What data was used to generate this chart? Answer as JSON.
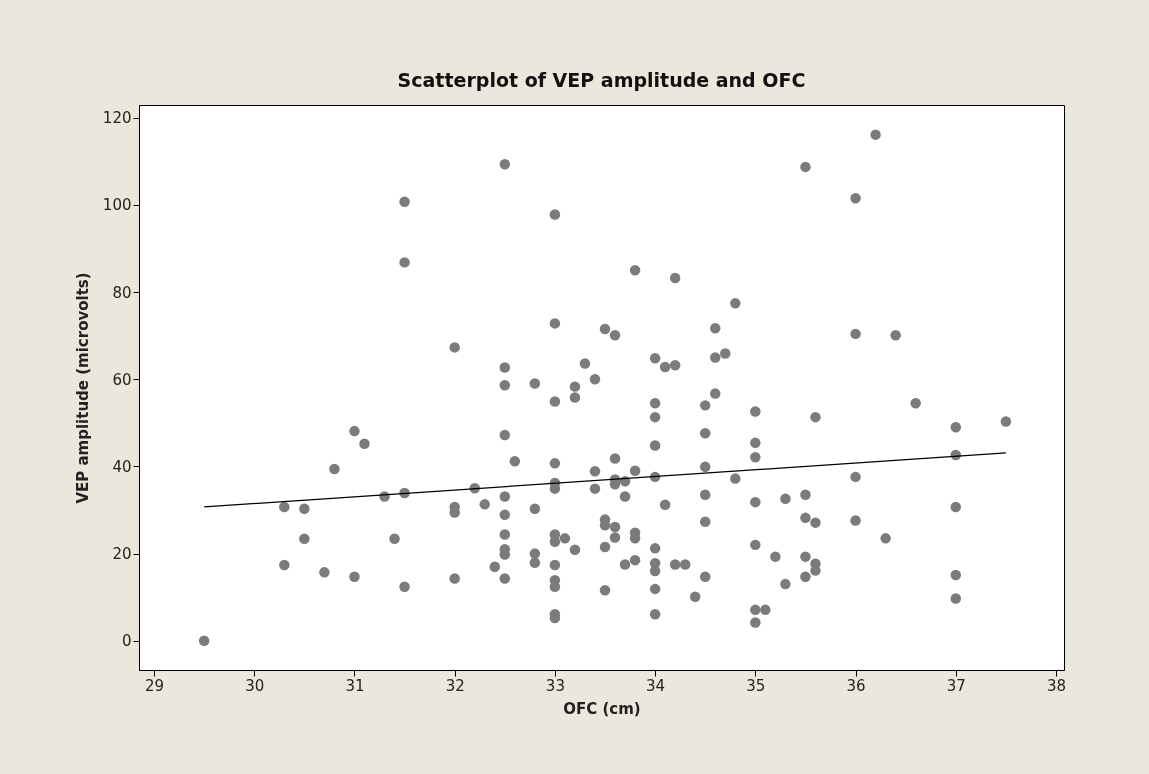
{
  "chart_data": {
    "type": "scatter",
    "title": "Scatterplot of VEP amplitude and OFC",
    "xlabel": "OFC (cm)",
    "ylabel": "VEP amplitude (microvolts)",
    "xlim": [
      28.85,
      38.08
    ],
    "ylim": [
      -6.7,
      122.9
    ],
    "xticks": [
      29,
      30,
      31,
      32,
      33,
      34,
      35,
      36,
      37,
      38
    ],
    "yticks": [
      0,
      20,
      40,
      60,
      80,
      100,
      120
    ],
    "grid": false,
    "series": [
      {
        "marker": "circle",
        "color": "#7b7b7b",
        "x": [
          29.5,
          31.5,
          31.5,
          31.0,
          31.1,
          30.8,
          30.3,
          30.5,
          31.3,
          31.5,
          30.5,
          31.4,
          30.3,
          30.7,
          31.0,
          31.5,
          32.5,
          33.0,
          33.8,
          34.2,
          34.8,
          33.0,
          33.5,
          33.6,
          32.0,
          34.6,
          32.5,
          32.5,
          32.8,
          33.3,
          33.4,
          33.2,
          33.2,
          33.0,
          34.0,
          34.1,
          34.2,
          34.6,
          34.7,
          34.6,
          34.5,
          34.0,
          34.0,
          34.5,
          34.0,
          32.5,
          32.6,
          33.0,
          33.4,
          33.6,
          33.8,
          34.0,
          34.5,
          34.8,
          32.2,
          33.0,
          33.0,
          33.4,
          33.6,
          33.6,
          33.7,
          32.5,
          32.3,
          32.0,
          32.0,
          33.7,
          34.1,
          34.5,
          32.5,
          32.8,
          34.5,
          33.5,
          33.5,
          33.6,
          33.6,
          33.8,
          33.8,
          33.0,
          33.0,
          33.1,
          32.5,
          32.5,
          32.5,
          33.2,
          33.5,
          32.8,
          32.8,
          34.0,
          34.0,
          34.0,
          32.4,
          33.0,
          33.7,
          33.8,
          34.2,
          34.3,
          34.5,
          32.0,
          32.5,
          33.0,
          33.0,
          33.5,
          34.0,
          34.4,
          33.0,
          33.0,
          34.0,
          36.2,
          35.5,
          36.0,
          36.0,
          36.4,
          36.6,
          35.0,
          35.6,
          37.0,
          37.5,
          35.0,
          35.0,
          37.0,
          36.0,
          35.0,
          35.3,
          35.5,
          35.5,
          35.6,
          36.0,
          36.3,
          37.0,
          35.0,
          35.2,
          35.5,
          35.6,
          35.6,
          35.5,
          35.3,
          37.0,
          37.0,
          35.0,
          35.1,
          35.0
        ],
        "values": [
          0,
          100.7,
          86.8,
          48.1,
          45.2,
          39.4,
          30.7,
          30.3,
          33.1,
          33.9,
          23.4,
          23.4,
          17.4,
          15.7,
          14.7,
          12.4,
          109.3,
          97.8,
          85.0,
          83.2,
          77.4,
          72.8,
          71.5,
          70.1,
          67.3,
          71.7,
          62.7,
          58.6,
          59.0,
          63.6,
          60.0,
          58.3,
          55.8,
          54.9,
          64.8,
          62.8,
          63.2,
          65.0,
          65.9,
          56.7,
          54.0,
          54.5,
          51.3,
          47.6,
          44.8,
          47.2,
          41.2,
          40.7,
          38.9,
          41.8,
          39.0,
          37.6,
          39.9,
          37.2,
          35.0,
          36.2,
          34.9,
          34.9,
          37.0,
          35.9,
          36.6,
          33.1,
          31.3,
          30.7,
          29.4,
          33.1,
          31.2,
          33.5,
          28.9,
          30.3,
          27.3,
          27.8,
          26.5,
          26.1,
          23.7,
          24.8,
          23.5,
          24.4,
          22.7,
          23.5,
          24.4,
          21.0,
          19.8,
          20.9,
          21.5,
          20.0,
          17.9,
          21.2,
          17.8,
          16.0,
          17.0,
          17.4,
          17.5,
          18.5,
          17.5,
          17.5,
          14.7,
          14.3,
          14.3,
          13.9,
          12.4,
          11.6,
          11.9,
          10.1,
          6.1,
          5.2,
          6.1,
          116.1,
          108.7,
          101.5,
          70.4,
          70.1,
          54.5,
          52.6,
          51.3,
          49.0,
          50.3,
          45.4,
          42.1,
          42.6,
          37.6,
          31.8,
          32.6,
          33.5,
          28.2,
          27.1,
          27.6,
          23.5,
          30.7,
          22.0,
          19.3,
          19.3,
          17.7,
          16.1,
          14.7,
          13.0,
          15.1,
          9.7,
          7.1,
          7.1,
          4.2
        ]
      },
      {
        "type": "line",
        "color": "#000000",
        "x": [
          29.5,
          37.5
        ],
        "values": [
          30.7,
          43.1
        ]
      }
    ]
  }
}
